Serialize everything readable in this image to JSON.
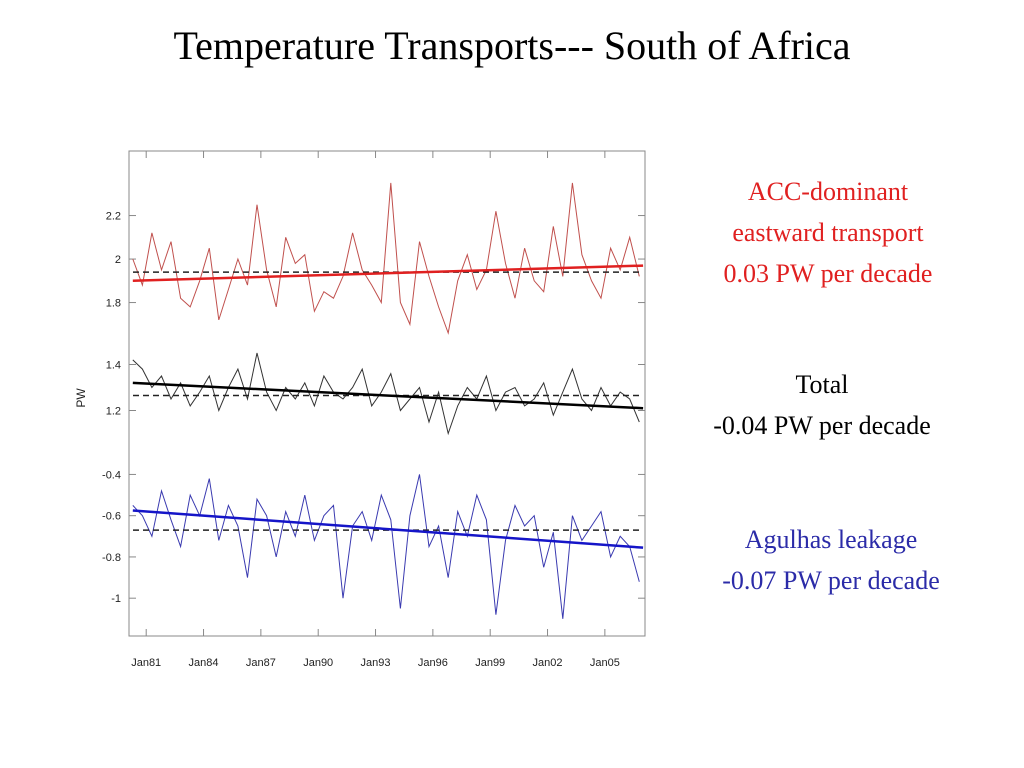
{
  "slide": {
    "title": "Temperature Transports--- South of Africa"
  },
  "annotations": [
    {
      "lines": [
        "ACC-dominant",
        "eastward transport",
        "0.03 PW per decade"
      ],
      "color": "#e02020"
    },
    {
      "lines": [
        "Total",
        "-0.04 PW per decade"
      ],
      "color": "#000000"
    },
    {
      "lines": [
        "Agulhas leakage",
        "-0.07 PW per decade"
      ],
      "color": "#2b2ba8"
    }
  ],
  "chart_data": {
    "type": "line",
    "title": "",
    "xlabel": "",
    "ylabel": "PW",
    "grid": false,
    "x_ticks": [
      "Jan81",
      "Jan84",
      "Jan87",
      "Jan90",
      "Jan93",
      "Jan96",
      "Jan99",
      "Jan02",
      "Jan05"
    ],
    "xlim": [
      1980.1,
      2007.1
    ],
    "y_ticks": [
      2.2,
      2,
      1.8,
      1.4,
      1.2,
      -0.4,
      -0.6,
      -0.8,
      -1
    ],
    "series": [
      {
        "name": "ACC-dominant eastward transport",
        "color": "#c0504d",
        "trend_color": "#e02020",
        "mean": 1.94,
        "trend": [
          [
            1980.3,
            1.9
          ],
          [
            2007.0,
            1.97
          ]
        ],
        "ylim": [
          1.66,
          2.46
        ],
        "x": [
          1980.3,
          1980.8,
          1981.3,
          1981.8,
          1982.3,
          1982.8,
          1983.3,
          1983.8,
          1984.3,
          1984.8,
          1985.3,
          1985.8,
          1986.3,
          1986.8,
          1987.3,
          1987.8,
          1988.3,
          1988.8,
          1989.3,
          1989.8,
          1990.3,
          1990.8,
          1991.3,
          1991.8,
          1992.3,
          1992.8,
          1993.3,
          1993.8,
          1994.3,
          1994.8,
          1995.3,
          1995.8,
          1996.3,
          1996.8,
          1997.3,
          1997.8,
          1998.3,
          1998.8,
          1999.3,
          1999.8,
          2000.3,
          2000.8,
          2001.3,
          2001.8,
          2002.3,
          2002.8,
          2003.3,
          2003.8,
          2004.3,
          2004.8,
          2005.3,
          2005.8,
          2006.3,
          2006.8
        ],
        "y": [
          2.0,
          1.88,
          2.12,
          1.95,
          2.08,
          1.82,
          1.78,
          1.9,
          2.05,
          1.72,
          1.86,
          2.0,
          1.88,
          2.25,
          1.95,
          1.78,
          2.1,
          1.98,
          2.02,
          1.76,
          1.85,
          1.82,
          1.92,
          2.12,
          1.95,
          1.88,
          1.8,
          2.35,
          1.8,
          1.7,
          2.08,
          1.92,
          1.78,
          1.66,
          1.9,
          2.02,
          1.86,
          1.95,
          2.22,
          1.98,
          1.82,
          2.05,
          1.9,
          1.85,
          2.15,
          1.92,
          2.35,
          2.02,
          1.9,
          1.82,
          2.05,
          1.95,
          2.1,
          1.92
        ]
      },
      {
        "name": "Total",
        "color": "#333333",
        "trend_color": "#000000",
        "mean": 1.265,
        "trend": [
          [
            1980.3,
            1.32
          ],
          [
            2007.0,
            1.21
          ]
        ],
        "ylim": [
          1.05,
          1.55
        ],
        "x": [
          1980.3,
          1980.8,
          1981.3,
          1981.8,
          1982.3,
          1982.8,
          1983.3,
          1983.8,
          1984.3,
          1984.8,
          1985.3,
          1985.8,
          1986.3,
          1986.8,
          1987.3,
          1987.8,
          1988.3,
          1988.8,
          1989.3,
          1989.8,
          1990.3,
          1990.8,
          1991.3,
          1991.8,
          1992.3,
          1992.8,
          1993.3,
          1993.8,
          1994.3,
          1994.8,
          1995.3,
          1995.8,
          1996.3,
          1996.8,
          1997.3,
          1997.8,
          1998.3,
          1998.8,
          1999.3,
          1999.8,
          2000.3,
          2000.8,
          2001.3,
          2001.8,
          2002.3,
          2002.8,
          2003.3,
          2003.8,
          2004.3,
          2004.8,
          2005.3,
          2005.8,
          2006.3,
          2006.8
        ],
        "y": [
          1.42,
          1.38,
          1.3,
          1.35,
          1.25,
          1.32,
          1.22,
          1.28,
          1.35,
          1.2,
          1.3,
          1.38,
          1.25,
          1.45,
          1.28,
          1.2,
          1.3,
          1.25,
          1.32,
          1.22,
          1.35,
          1.28,
          1.25,
          1.3,
          1.38,
          1.22,
          1.28,
          1.36,
          1.2,
          1.25,
          1.3,
          1.15,
          1.28,
          1.1,
          1.22,
          1.3,
          1.25,
          1.35,
          1.2,
          1.28,
          1.3,
          1.22,
          1.25,
          1.32,
          1.18,
          1.28,
          1.38,
          1.25,
          1.2,
          1.3,
          1.22,
          1.28,
          1.25,
          1.15
        ]
      },
      {
        "name": "Agulhas leakage",
        "color": "#3a3ab0",
        "trend_color": "#1515c8",
        "mean": -0.67,
        "trend": [
          [
            1980.3,
            -0.575
          ],
          [
            2007.0,
            -0.755
          ]
        ],
        "ylim": [
          -1.13,
          -0.33
        ],
        "x": [
          1980.3,
          1980.8,
          1981.3,
          1981.8,
          1982.3,
          1982.8,
          1983.3,
          1983.8,
          1984.3,
          1984.8,
          1985.3,
          1985.8,
          1986.3,
          1986.8,
          1987.3,
          1987.8,
          1988.3,
          1988.8,
          1989.3,
          1989.8,
          1990.3,
          1990.8,
          1991.3,
          1991.8,
          1992.3,
          1992.8,
          1993.3,
          1993.8,
          1994.3,
          1994.8,
          1995.3,
          1995.8,
          1996.3,
          1996.8,
          1997.3,
          1997.8,
          1998.3,
          1998.8,
          1999.3,
          1999.8,
          2000.3,
          2000.8,
          2001.3,
          2001.8,
          2002.3,
          2002.8,
          2003.3,
          2003.8,
          2004.3,
          2004.8,
          2005.3,
          2005.8,
          2006.3,
          2006.8
        ],
        "y": [
          -0.55,
          -0.6,
          -0.7,
          -0.48,
          -0.62,
          -0.75,
          -0.5,
          -0.6,
          -0.42,
          -0.72,
          -0.55,
          -0.65,
          -0.9,
          -0.52,
          -0.6,
          -0.8,
          -0.58,
          -0.7,
          -0.5,
          -0.72,
          -0.6,
          -0.55,
          -1.0,
          -0.65,
          -0.58,
          -0.72,
          -0.5,
          -0.62,
          -1.05,
          -0.6,
          -0.4,
          -0.75,
          -0.65,
          -0.9,
          -0.58,
          -0.7,
          -0.5,
          -0.62,
          -1.08,
          -0.72,
          -0.55,
          -0.65,
          -0.6,
          -0.85,
          -0.68,
          -1.1,
          -0.6,
          -0.72,
          -0.65,
          -0.58,
          -0.8,
          -0.7,
          -0.75,
          -0.92
        ]
      }
    ]
  }
}
